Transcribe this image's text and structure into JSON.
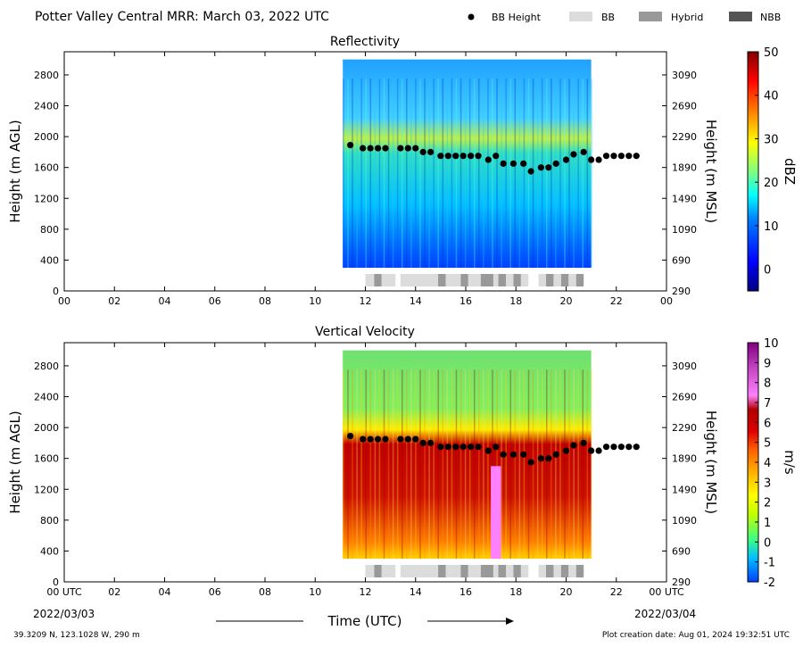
{
  "header": {
    "title": "Potter Valley Central MRR:  March 03, 2022 UTC",
    "legend": [
      {
        "label": "BB Height",
        "marker": "dot",
        "color": "#000000"
      },
      {
        "label": "BB",
        "marker": "box",
        "color": "#dcdcdc"
      },
      {
        "label": "Hybrid",
        "marker": "box",
        "color": "#999999"
      },
      {
        "label": "NBB",
        "marker": "box",
        "color": "#555555"
      }
    ]
  },
  "footer": {
    "xlabel": "Time (UTC)",
    "start_time": "00 UTC",
    "start_date": "2022/03/03",
    "end_time": "00 UTC",
    "end_date": "2022/03/04",
    "location": "39.3209 N, 123.1028 W, 290 m",
    "created": "Plot creation date: Aug 01, 2024 19:32:51 UTC"
  },
  "bb_height": {
    "hours": [
      11.4,
      11.9,
      12.2,
      12.5,
      12.8,
      13.4,
      13.7,
      14.0,
      14.3,
      14.6,
      15.0,
      15.3,
      15.6,
      15.9,
      16.2,
      16.5,
      16.9,
      17.2,
      17.5,
      17.9,
      18.3,
      18.6,
      19.0,
      19.3,
      19.6,
      20.0,
      20.3,
      20.7,
      21.0,
      21.3,
      21.6,
      21.9,
      22.2,
      22.5,
      22.8
    ],
    "agl_m": [
      1890,
      1850,
      1850,
      1850,
      1850,
      1850,
      1850,
      1850,
      1800,
      1800,
      1750,
      1750,
      1750,
      1750,
      1750,
      1750,
      1700,
      1750,
      1650,
      1650,
      1650,
      1550,
      1600,
      1600,
      1650,
      1700,
      1770,
      1800,
      1700,
      1700,
      1750,
      1750,
      1750,
      1750,
      1750
    ]
  },
  "bb_type_segments": [
    {
      "start": 12.0,
      "end": 12.35,
      "type": "BB"
    },
    {
      "start": 12.35,
      "end": 12.65,
      "type": "Hybrid"
    },
    {
      "start": 12.65,
      "end": 13.2,
      "type": "BB"
    },
    {
      "start": 13.4,
      "end": 14.9,
      "type": "BB"
    },
    {
      "start": 14.9,
      "end": 15.2,
      "type": "Hybrid"
    },
    {
      "start": 15.2,
      "end": 15.8,
      "type": "BB"
    },
    {
      "start": 15.8,
      "end": 16.1,
      "type": "Hybrid"
    },
    {
      "start": 16.1,
      "end": 16.6,
      "type": "BB"
    },
    {
      "start": 16.6,
      "end": 17.1,
      "type": "Hybrid"
    },
    {
      "start": 17.1,
      "end": 17.3,
      "type": "BB"
    },
    {
      "start": 17.3,
      "end": 17.6,
      "type": "Hybrid"
    },
    {
      "start": 17.6,
      "end": 17.9,
      "type": "BB"
    },
    {
      "start": 17.9,
      "end": 18.2,
      "type": "Hybrid"
    },
    {
      "start": 18.2,
      "end": 18.5,
      "type": "BB"
    },
    {
      "start": 18.9,
      "end": 19.2,
      "type": "BB"
    },
    {
      "start": 19.2,
      "end": 19.5,
      "type": "Hybrid"
    },
    {
      "start": 19.5,
      "end": 19.8,
      "type": "BB"
    },
    {
      "start": 19.8,
      "end": 20.1,
      "type": "Hybrid"
    },
    {
      "start": 20.1,
      "end": 20.4,
      "type": "BB"
    },
    {
      "start": 20.4,
      "end": 20.7,
      "type": "Hybrid"
    }
  ],
  "chart_data": [
    {
      "type": "heatmap",
      "title": "Reflectivity",
      "ylabel": "Height (m AGL)",
      "y2label": "Height (m MSL)",
      "x_range_hours": [
        0,
        24
      ],
      "x_ticks": [
        "00",
        "02",
        "04",
        "06",
        "08",
        "10",
        "12",
        "14",
        "16",
        "18",
        "20",
        "22",
        "00"
      ],
      "ylim": [
        0,
        3100
      ],
      "yticks": [
        "0",
        "400",
        "800",
        "1200",
        "1600",
        "2000",
        "2400",
        "2800"
      ],
      "y2ticks": [
        "290",
        "690",
        "1090",
        "1490",
        "1890",
        "2290",
        "2690",
        "3090"
      ],
      "data_extent_hours": [
        11.1,
        21.0
      ],
      "colorbar": {
        "label": "dBZ",
        "min": -5,
        "max": 50,
        "ticks": [
          "0",
          "10",
          "20",
          "30",
          "40",
          "50"
        ],
        "colors": [
          "#000080",
          "#0000ff",
          "#0080ff",
          "#00ffff",
          "#80ff80",
          "#ffff00",
          "#ff8000",
          "#ff0000",
          "#800000"
        ]
      }
    },
    {
      "type": "heatmap",
      "title": "Vertical Velocity",
      "ylabel": "Height (m AGL)",
      "y2label": "Height (m MSL)",
      "x_range_hours": [
        0,
        24
      ],
      "x_ticks": [
        "00 UTC",
        "02",
        "04",
        "06",
        "08",
        "10",
        "12",
        "14",
        "16",
        "18",
        "20",
        "22",
        "00 UTC"
      ],
      "ylim": [
        0,
        3100
      ],
      "yticks": [
        "0",
        "400",
        "800",
        "1200",
        "1600",
        "2000",
        "2400",
        "2800"
      ],
      "y2ticks": [
        "290",
        "690",
        "1090",
        "1490",
        "1890",
        "2290",
        "2690",
        "3090"
      ],
      "data_extent_hours": [
        11.1,
        21.0
      ],
      "colorbar": {
        "label": "m/s",
        "min": -2,
        "max": 10,
        "ticks": [
          "-2",
          "-1",
          "0",
          "1",
          "2",
          "3",
          "4",
          "5",
          "6",
          "7",
          "8",
          "9",
          "10"
        ],
        "colors": [
          "#0040ff",
          "#00c0ff",
          "#40ff80",
          "#c0ff00",
          "#ffff00",
          "#ffb000",
          "#ff6000",
          "#e00000",
          "#b00000",
          "#ff80ff",
          "#c040c0",
          "#800080"
        ]
      }
    }
  ]
}
